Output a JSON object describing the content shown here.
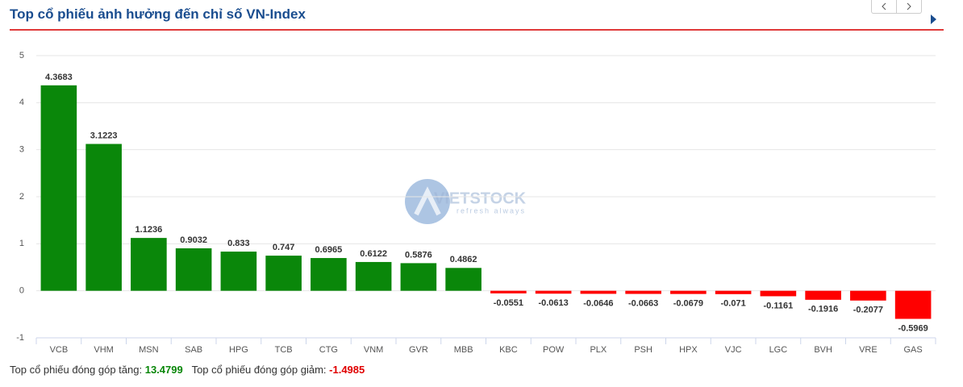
{
  "chart_data": {
    "type": "bar",
    "title": "Top cổ phiếu ảnh hưởng đến chỉ số VN-Index",
    "categories": [
      "VCB",
      "VHM",
      "MSN",
      "SAB",
      "HPG",
      "TCB",
      "CTG",
      "VNM",
      "GVR",
      "MBB",
      "KBC",
      "POW",
      "PLX",
      "PSH",
      "HPX",
      "VJC",
      "LGC",
      "BVH",
      "VRE",
      "GAS"
    ],
    "values": [
      4.3683,
      3.1223,
      1.1236,
      0.9032,
      0.833,
      0.747,
      0.6965,
      0.6122,
      0.5876,
      0.4862,
      -0.0551,
      -0.0613,
      -0.0646,
      -0.0663,
      -0.0679,
      -0.071,
      -0.1161,
      -0.1916,
      -0.2077,
      -0.5969
    ],
    "positive_color": "#0a870a",
    "negative_color": "#ff0000",
    "ylim": [
      -1,
      5
    ],
    "yticks": [
      -1,
      0,
      1,
      2,
      3,
      4,
      5
    ],
    "grid": true,
    "watermark": {
      "brand": "VIETSTOCK",
      "tagline": "refresh always"
    },
    "summary": {
      "up_label": "Top cổ phiếu đóng góp tăng:",
      "up_value": 13.4799,
      "down_label": "Top cổ phiếu đóng góp giảm:",
      "down_value": -1.4985
    }
  }
}
